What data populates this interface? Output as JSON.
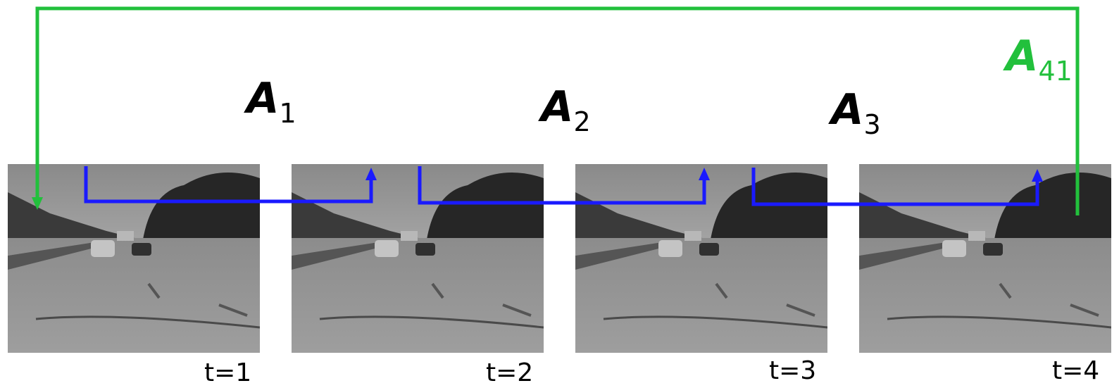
{
  "transforms": [
    {
      "symbol": "A",
      "subscript": "1"
    },
    {
      "symbol": "A",
      "subscript": "2"
    },
    {
      "symbol": "A",
      "subscript": "3"
    },
    {
      "symbol": "A",
      "subscript": "41"
    }
  ],
  "frames": [
    {
      "label": "t=1"
    },
    {
      "label": "t=2"
    },
    {
      "label": "t=3"
    },
    {
      "label": "t=4"
    }
  ]
}
